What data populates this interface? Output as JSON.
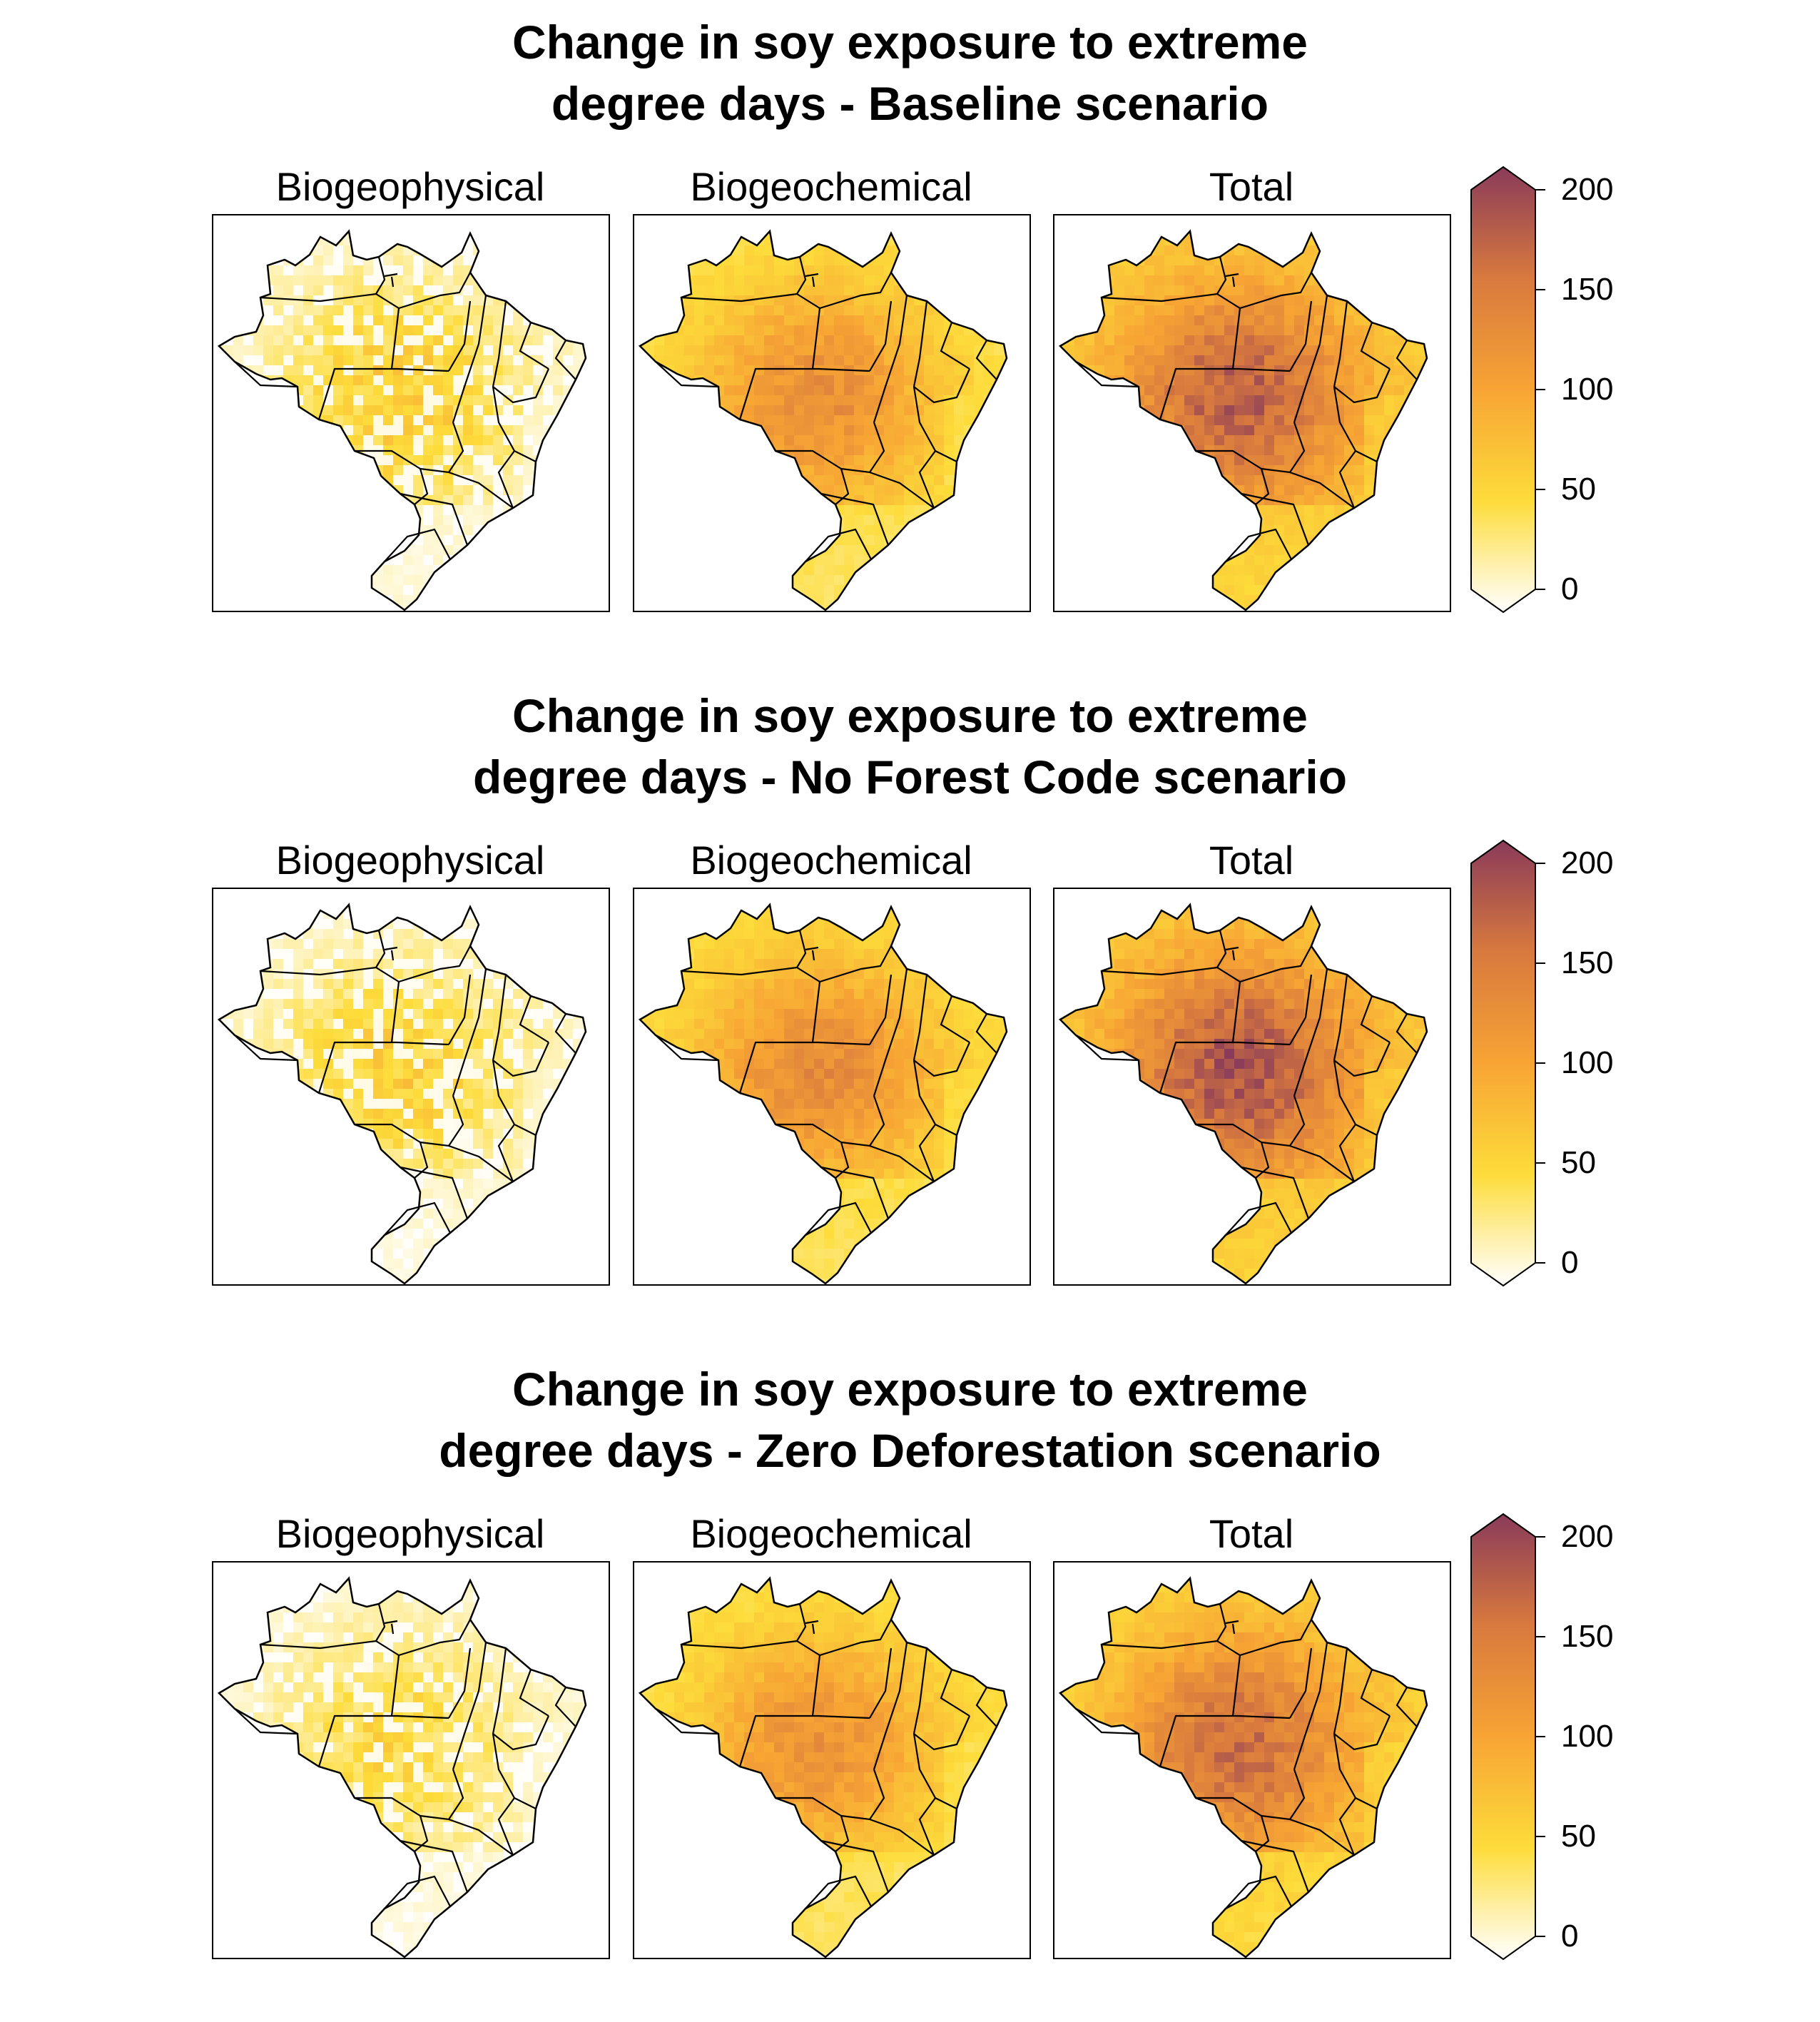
{
  "chart_data": [
    {
      "type": "heatmap",
      "title": "Change in soy exposure to extreme\ndegree days - Baseline scenario",
      "panels": [
        {
          "label": "Biogeophysical",
          "intensity": 0.32
        },
        {
          "label": "Biogeochemical",
          "intensity": 0.58
        },
        {
          "label": "Total",
          "intensity": 0.8
        }
      ],
      "colorbar": {
        "min": 0,
        "max": 200,
        "ticks": [
          "0",
          "50",
          "100",
          "150",
          "200"
        ],
        "colors": [
          "#ffffff",
          "#fddc3a",
          "#f7a434",
          "#d8793e",
          "#8a3b5a"
        ]
      }
    },
    {
      "type": "heatmap",
      "title": "Change in soy exposure to extreme\ndegree days - No Forest Code scenario",
      "panels": [
        {
          "label": "Biogeophysical",
          "intensity": 0.3
        },
        {
          "label": "Biogeochemical",
          "intensity": 0.6
        },
        {
          "label": "Total",
          "intensity": 0.85
        }
      ],
      "colorbar": {
        "min": 0,
        "max": 200,
        "ticks": [
          "0",
          "50",
          "100",
          "150",
          "200"
        ],
        "colors": [
          "#ffffff",
          "#fddc3a",
          "#f7a434",
          "#d8793e",
          "#8a3b5a"
        ]
      }
    },
    {
      "type": "heatmap",
      "title": "Change in soy exposure to extreme\ndegree days - Zero Deforestation scenario",
      "panels": [
        {
          "label": "Biogeophysical",
          "intensity": 0.26
        },
        {
          "label": "Biogeochemical",
          "intensity": 0.56
        },
        {
          "label": "Total",
          "intensity": 0.74
        }
      ],
      "colorbar": {
        "min": 0,
        "max": 200,
        "ticks": [
          "0",
          "50",
          "100",
          "150",
          "200"
        ],
        "colors": [
          "#ffffff",
          "#fddc3a",
          "#f7a434",
          "#d8793e",
          "#8a3b5a"
        ]
      }
    }
  ]
}
